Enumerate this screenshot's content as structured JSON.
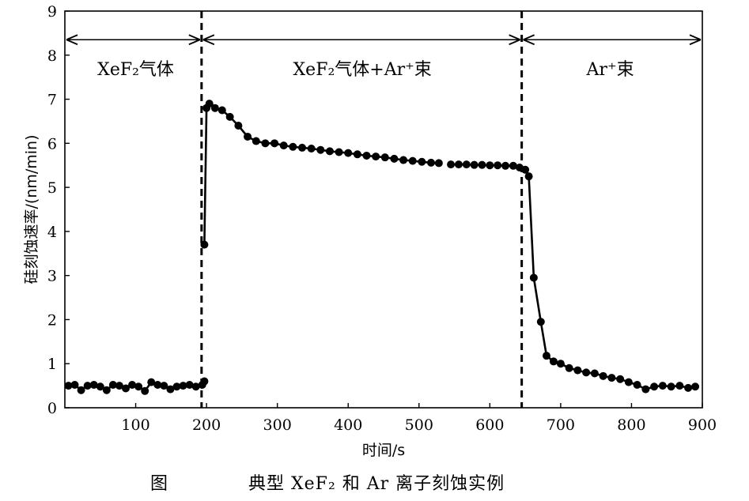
{
  "chart_data": {
    "type": "line",
    "xlabel": "时间/s",
    "ylabel": "硅刻蚀速率/(nm/min)",
    "xlim": [
      0,
      900
    ],
    "ylim": [
      0,
      9
    ],
    "xticks": [
      "100",
      "200",
      "300",
      "400",
      "500",
      "600",
      "700",
      "800",
      "900"
    ],
    "yticks": [
      "0",
      "1",
      "2",
      "3",
      "4",
      "5",
      "6",
      "7",
      "8",
      "9"
    ],
    "grid": false,
    "legend": "none",
    "line_color": "#000000",
    "dividers": [
      {
        "x": 193,
        "style": "dashed"
      },
      {
        "x": 645,
        "style": "dashed"
      }
    ],
    "regions": [
      {
        "label": "XeF₂气体",
        "x_start": 0,
        "x_end": 193,
        "label_x": 100
      },
      {
        "label": "XeF₂气体+Ar⁺束",
        "x_start": 193,
        "x_end": 645,
        "label_x": 420
      },
      {
        "label": "Ar⁺束",
        "x_start": 645,
        "x_end": 900,
        "label_x": 770
      }
    ],
    "series": [
      {
        "segments": [
          {
            "x": [
              5,
              14,
              23,
              32,
              41,
              50,
              59,
              68,
              77,
              86,
              95,
              104,
              113,
              122,
              131,
              140,
              149,
              158,
              167,
              176,
              185,
              194,
              197
            ],
            "y": [
              0.5,
              0.52,
              0.4,
              0.5,
              0.52,
              0.48,
              0.4,
              0.52,
              0.5,
              0.44,
              0.52,
              0.48,
              0.38,
              0.58,
              0.52,
              0.5,
              0.42,
              0.48,
              0.5,
              0.52,
              0.48,
              0.52,
              0.6
            ]
          },
          {
            "x": [
              197,
              200,
              204,
              212,
              222,
              233,
              245,
              258,
              270,
              283,
              296,
              309,
              322,
              335,
              348,
              361,
              374,
              387,
              400,
              413,
              426,
              439,
              452,
              465,
              478,
              491,
              504,
              517,
              528
            ],
            "y": [
              3.7,
              6.8,
              6.9,
              6.8,
              6.75,
              6.6,
              6.4,
              6.15,
              6.05,
              6.0,
              6.0,
              5.95,
              5.92,
              5.9,
              5.88,
              5.85,
              5.82,
              5.8,
              5.78,
              5.75,
              5.72,
              5.7,
              5.68,
              5.65,
              5.62,
              5.6,
              5.58,
              5.56,
              5.55
            ]
          },
          {
            "x": [
              545,
              556,
              567,
              578,
              589,
              600,
              611,
              622,
              633,
              642,
              650,
              655,
              662,
              672,
              680,
              690,
              700,
              712,
              724,
              736,
              748,
              760,
              772,
              784,
              796,
              808,
              820,
              832,
              844,
              856,
              868,
              880,
              890
            ],
            "y": [
              5.52,
              5.52,
              5.52,
              5.51,
              5.51,
              5.5,
              5.5,
              5.49,
              5.49,
              5.45,
              5.4,
              5.25,
              2.95,
              1.95,
              1.18,
              1.05,
              1.0,
              0.9,
              0.85,
              0.8,
              0.78,
              0.72,
              0.68,
              0.65,
              0.58,
              0.52,
              0.42,
              0.48,
              0.5,
              0.48,
              0.5,
              0.45,
              0.48
            ]
          }
        ]
      }
    ]
  },
  "caption": {
    "label": "图",
    "text": "典型 XeF₂ 和 Ar 离子刻蚀实例"
  }
}
